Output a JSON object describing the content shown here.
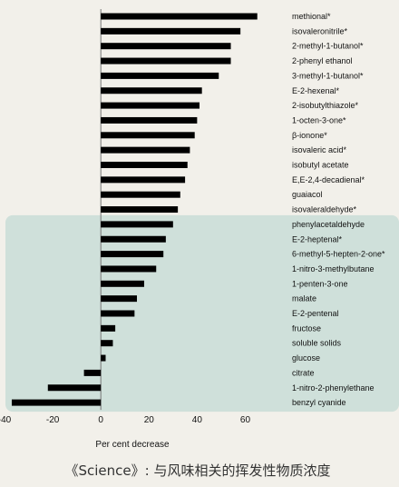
{
  "chart_data": {
    "type": "bar",
    "orientation": "horizontal",
    "categories": [
      "methional*",
      "isovaleronitrile*",
      "2-methyl-1-butanol*",
      "2-phenyl ethanol",
      "3-methyl-1-butanol*",
      "E-2-hexenal*",
      "2-isobutylthiazole*",
      "1-octen-3-one*",
      "β-ionone*",
      "isovaleric acid*",
      "isobutyl acetate",
      "E,E-2,4-decadienal*",
      "guaiacol",
      "isovaleraldehyde*",
      "phenylacetaldehyde",
      "E-2-heptenal*",
      "6-methyl-5-hepten-2-one*",
      "1-nitro-3-methylbutane",
      "1-penten-3-one",
      "malate",
      "E-2-pentenal",
      "fructose",
      "soluble solids",
      "glucose",
      "citrate",
      "1-nitro-2-phenylethane",
      "benzyl cyanide"
    ],
    "values": [
      65,
      58,
      54,
      54,
      49,
      42,
      41,
      40,
      39,
      37,
      36,
      35,
      33,
      32,
      30,
      27,
      26,
      23,
      18,
      15,
      14,
      6,
      5,
      2,
      -7,
      -22,
      -37
    ],
    "xlabel": "Per cent decrease",
    "xlim": [
      -40,
      70
    ],
    "xticks": [
      -40,
      -20,
      0,
      20,
      40,
      60
    ],
    "tick_labels": [
      "-40",
      "-20",
      "0",
      "20",
      "40",
      "60"
    ],
    "highlight": {
      "from_category": "phenylacetaldehyde",
      "to_category": "benzyl cyanide",
      "color": "#cfe0da"
    },
    "bar_color": "#000000",
    "grid": false
  },
  "caption": "《Science》: 与风味相关的挥发性物质浓度"
}
